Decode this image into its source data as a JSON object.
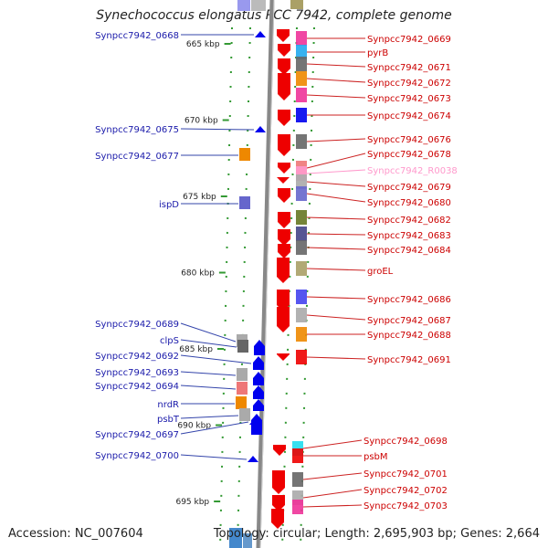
{
  "title": "Synechococcus elongatus PCC 7942, complete genome",
  "accession": "Accession: NC_007604",
  "topology": "Topology: circular; Length: 2,695,903 bp; Genes: 2,664",
  "colors": {
    "forward_arrow": "#0000ee",
    "reverse_arrow": "#ee0000",
    "left_label": "#1a1aaa",
    "right_label": "#cc0000",
    "rna_label": "#ff99cc",
    "ticks": "#339933",
    "backbone": "#888888"
  },
  "chart_data": {
    "type": "genome_map",
    "scale": {
      "unit": "kbp",
      "ticks": [
        "665 kbp",
        "670 kbp",
        "675 kbp",
        "680 kbp",
        "685 kbp",
        "690 kbp",
        "695 kbp"
      ]
    },
    "left_genes": [
      {
        "name": "Synpcc7942_0668",
        "mark": "arrow",
        "color": "#0000ee"
      },
      {
        "name": "Synpcc7942_0675",
        "mark": "arrow",
        "color": "#0000ee"
      },
      {
        "name": "Synpcc7942_0677",
        "mark": "box",
        "color": "#ee8800"
      },
      {
        "name": "ispD",
        "mark": "box",
        "color": "#6666cc"
      },
      {
        "name": "Synpcc7942_0689",
        "mark": "box",
        "color": "#aaaaaa"
      },
      {
        "name": "clpS",
        "mark": "box",
        "color": "#666666"
      },
      {
        "name": "Synpcc7942_0692",
        "mark": "none",
        "color": "#0000ee"
      },
      {
        "name": "Synpcc7942_0693",
        "mark": "box",
        "color": "#aaaaaa"
      },
      {
        "name": "Synpcc7942_0694",
        "mark": "box",
        "color": "#ee7777"
      },
      {
        "name": "nrdR",
        "mark": "box",
        "color": "#ee8800"
      },
      {
        "name": "psbT",
        "mark": "box",
        "color": "#aaaaaa"
      },
      {
        "name": "Synpcc7942_0697",
        "mark": "arrow",
        "color": "#0000ee"
      },
      {
        "name": "Synpcc7942_0700",
        "mark": "arrow",
        "color": "#0000ee"
      }
    ],
    "right_genes": [
      {
        "name": "Synpcc7942_0669",
        "color": "#ee3399"
      },
      {
        "name": "pyrB",
        "color": "#22aaee"
      },
      {
        "name": "Synpcc7942_0671",
        "color": "#666666"
      },
      {
        "name": "Synpcc7942_0672",
        "color": "#ee8800"
      },
      {
        "name": "Synpcc7942_0673",
        "color": "#ee3399"
      },
      {
        "name": "Synpcc7942_0674",
        "color": "#0000ee"
      },
      {
        "name": "Synpcc7942_0676",
        "color": "#666666"
      },
      {
        "name": "Synpcc7942_0678",
        "color": "#ee7777"
      },
      {
        "name": "Synpcc7942_R0038",
        "color": "#ff99cc"
      },
      {
        "name": "Synpcc7942_0679",
        "color": "#aaaaaa"
      },
      {
        "name": "Synpcc7942_0680",
        "color": "#6666cc"
      },
      {
        "name": "Synpcc7942_0682",
        "color": "#667722"
      },
      {
        "name": "Synpcc7942_0683",
        "color": "#444488"
      },
      {
        "name": "Synpcc7942_0684",
        "color": "#666666"
      },
      {
        "name": "groEL",
        "color": "#aaa066"
      },
      {
        "name": "Synpcc7942_0686",
        "color": "#4444ee"
      },
      {
        "name": "Synpcc7942_0687",
        "color": "#aaaaaa"
      },
      {
        "name": "Synpcc7942_0688",
        "color": "#ee8800"
      },
      {
        "name": "Synpcc7942_0691",
        "color": "#ee0000"
      },
      {
        "name": "Synpcc7942_0698",
        "color": "#22ddee"
      },
      {
        "name": "psbM",
        "color": "#ee0000"
      },
      {
        "name": "Synpcc7942_0701",
        "color": "#666666"
      },
      {
        "name": "Synpcc7942_0702",
        "color": "#aaaaaa"
      },
      {
        "name": "Synpcc7942_0703",
        "color": "#ee3399"
      }
    ]
  }
}
